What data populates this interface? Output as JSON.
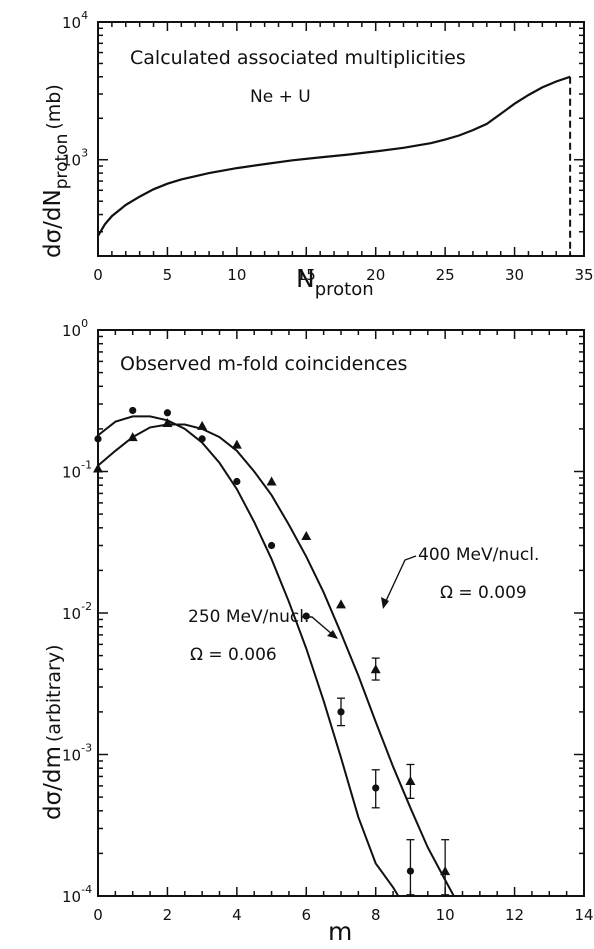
{
  "chart_data": [
    {
      "type": "line",
      "title": "Calculated associated multiplicities",
      "annotation": "Ne + U",
      "xlabel": "N",
      "xlabel_sub": "proton",
      "ylabel": "dσ/dN",
      "ylabel_sub": "proton",
      "ylabel_unit": "(mb)",
      "xlim": [
        0,
        35
      ],
      "ylim": [
        200,
        10000
      ],
      "yscale": "log",
      "xticks": [
        "0",
        "5",
        "10",
        "15",
        "20",
        "25",
        "30",
        "35"
      ],
      "yticks": [
        {
          "base": "10",
          "exp": "3",
          "value": 1000
        },
        {
          "base": "10",
          "exp": "4",
          "value": 10000
        }
      ],
      "grid": false,
      "series": [
        {
          "x": [
            0,
            0.5,
            1,
            2,
            3,
            4,
            5,
            6,
            8,
            10,
            12,
            14,
            16,
            18,
            20,
            22,
            24,
            25,
            26,
            27,
            28,
            29,
            30,
            31,
            32,
            33,
            34
          ],
          "y": [
            280,
            340,
            390,
            470,
            540,
            610,
            670,
            720,
            800,
            870,
            930,
            990,
            1040,
            1090,
            1150,
            1220,
            1320,
            1400,
            1500,
            1640,
            1820,
            2150,
            2550,
            2950,
            3350,
            3700,
            4000
          ]
        }
      ],
      "cutoff": {
        "x": 34,
        "y_from": 200,
        "y_to": 4000,
        "style": "dashed"
      }
    },
    {
      "type": "scatter",
      "title": "Observed m-fold coincidences",
      "xlabel": "m",
      "ylabel": "dσ/dm",
      "ylabel_unit": "(arbitrary)",
      "xlim": [
        0,
        14
      ],
      "ylim": [
        0.0001,
        1
      ],
      "yscale": "log",
      "xticks": [
        "0",
        "2",
        "4",
        "6",
        "8",
        "10",
        "12",
        "14"
      ],
      "yticks": [
        {
          "base": "10",
          "exp": "0",
          "value": 1
        },
        {
          "base": "10",
          "exp": "-1",
          "value": 0.1
        },
        {
          "base": "10",
          "exp": "-2",
          "value": 0.01
        },
        {
          "base": "10",
          "exp": "-3",
          "value": 0.001
        },
        {
          "base": "10",
          "exp": "-4",
          "value": 0.0001
        }
      ],
      "grid": false,
      "series": [
        {
          "name": "250 MeV/nucl.",
          "omega": "Ω = 0.006",
          "marker": "circle",
          "x": [
            0,
            1,
            2,
            3,
            4,
            5,
            6,
            7,
            8,
            9
          ],
          "y": [
            0.17,
            0.27,
            0.26,
            0.17,
            0.085,
            0.03,
            0.0095,
            0.002,
            0.00058,
            0.00015
          ],
          "err": [
            0,
            0,
            0,
            0,
            0,
            0,
            0,
            0.0005,
            0.0002,
            0.0001
          ],
          "fit_x": [
            0,
            0.5,
            1,
            1.5,
            2,
            2.5,
            3,
            3.5,
            4,
            4.5,
            5,
            5.5,
            6,
            6.5,
            7,
            7.5,
            8,
            8.5,
            8.65
          ],
          "fit_y": [
            0.18,
            0.225,
            0.245,
            0.245,
            0.23,
            0.2,
            0.16,
            0.115,
            0.075,
            0.044,
            0.024,
            0.012,
            0.0056,
            0.0024,
            0.00095,
            0.00036,
            0.00017,
            0.000115,
            0.0001
          ]
        },
        {
          "name": "400 MeV/nucl.",
          "omega": "Ω = 0.009",
          "marker": "triangle",
          "x": [
            0,
            1,
            2,
            3,
            4,
            5,
            6,
            7,
            8,
            9,
            10
          ],
          "y": [
            0.105,
            0.175,
            0.22,
            0.21,
            0.155,
            0.085,
            0.035,
            0.0115,
            0.004,
            0.00065,
            0.00015
          ],
          "err": [
            0,
            0,
            0,
            0,
            0,
            0,
            0,
            0,
            0.0008,
            0.0002,
            0.0001
          ],
          "fit_x": [
            0,
            0.5,
            1,
            1.5,
            2,
            2.5,
            3,
            3.5,
            4,
            4.5,
            5,
            5.5,
            6,
            6.5,
            7,
            7.5,
            8,
            8.5,
            9,
            9.5,
            10,
            10.25
          ],
          "fit_y": [
            0.11,
            0.14,
            0.175,
            0.205,
            0.215,
            0.215,
            0.2,
            0.175,
            0.14,
            0.1,
            0.068,
            0.042,
            0.025,
            0.014,
            0.0072,
            0.0036,
            0.0017,
            0.00082,
            0.00042,
            0.00022,
            0.00013,
            0.0001
          ]
        }
      ]
    }
  ]
}
